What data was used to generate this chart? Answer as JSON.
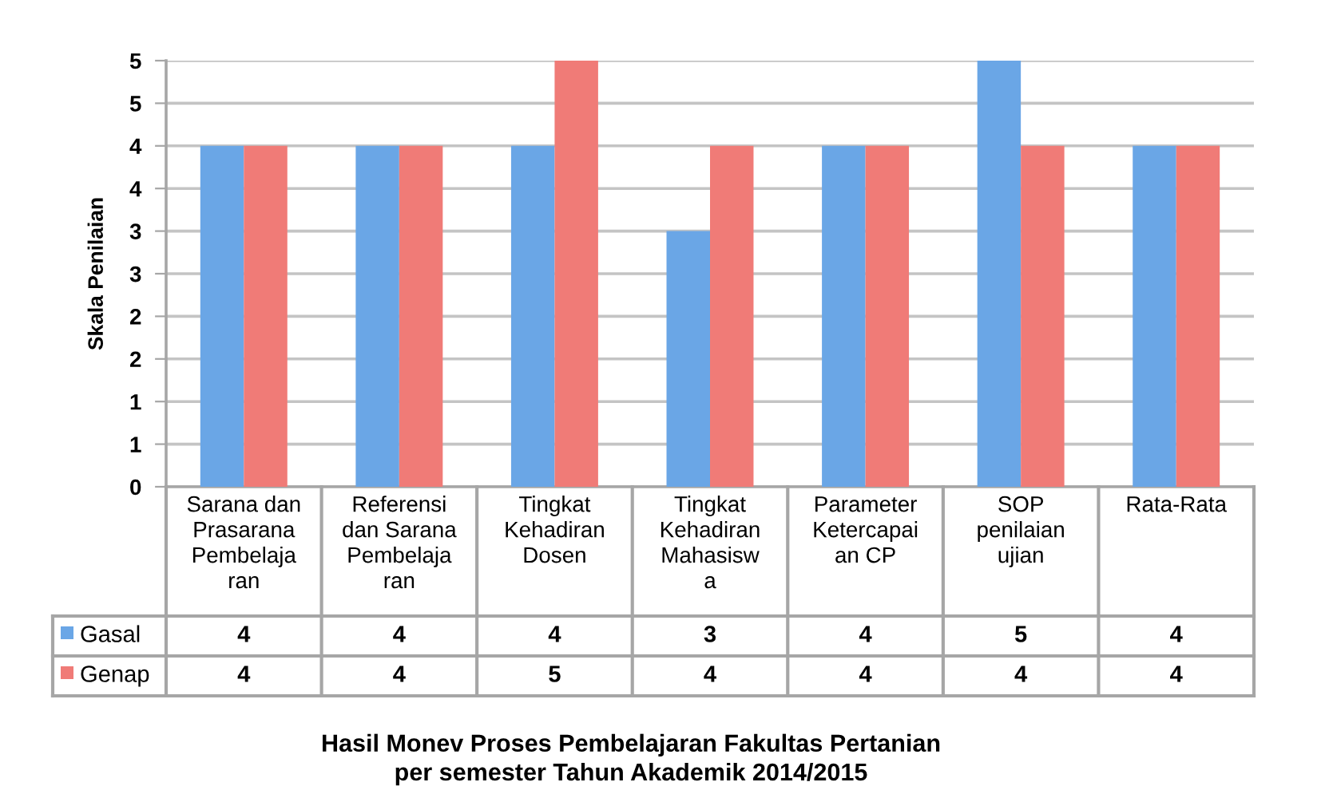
{
  "chart_data": {
    "type": "bar",
    "title": "Hasil Monev Proses Pembelajaran Fakultas Pertanian\nper semester Tahun Akademik 2014/2015",
    "ylabel": "Skala Penilaian",
    "categories": [
      "Sarana dan\nPrasarana\nPembelaja\nran",
      "Referensi\ndan Sarana\nPembelaja\nran",
      "Tingkat\nKehadiran\nDosen",
      "Tingkat\nKehadiran\nMahasisw\na",
      "Parameter\nKetercapai\nan CP",
      "SOP\npenilaian\nujian",
      "Rata-Rata"
    ],
    "series": [
      {
        "name": "Gasal",
        "color": "#6aa6e6",
        "values": [
          4,
          4,
          4,
          3,
          4,
          5,
          4
        ]
      },
      {
        "name": "Genap",
        "color": "#f07b77",
        "values": [
          4,
          4,
          5,
          4,
          4,
          4,
          4
        ]
      }
    ],
    "ylim": [
      0,
      5
    ],
    "yticks": [
      0,
      {
        "value": 0.5,
        "label": "1"
      },
      1,
      {
        "value": 1.5,
        "label": "2"
      },
      2,
      {
        "value": 2.5,
        "label": "3"
      },
      3,
      {
        "value": 3.5,
        "label": "4"
      },
      4,
      {
        "value": 4.5,
        "label": "5"
      },
      5
    ],
    "grid": "y",
    "legend": "bottom",
    "data_labels": true
  }
}
